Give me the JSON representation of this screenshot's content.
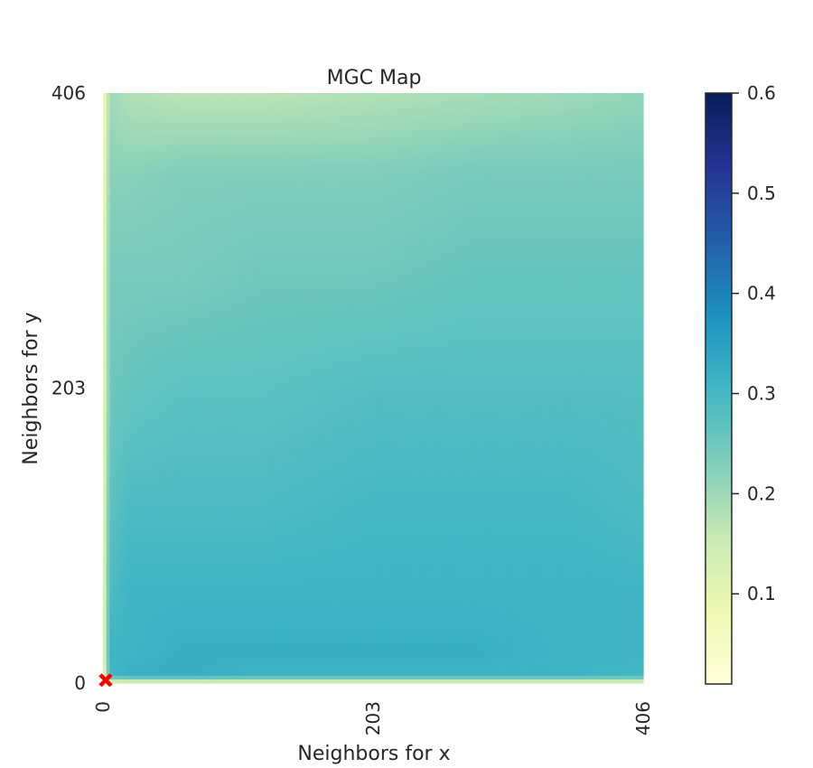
{
  "chart_data": {
    "type": "heatmap",
    "title": "MGC Map",
    "xlabel": "Neighbors for x",
    "ylabel": "Neighbors for y",
    "x_ticks": [
      "0",
      "203",
      "406"
    ],
    "y_ticks": [
      "0",
      "203",
      "406"
    ],
    "xlim": [
      0,
      406
    ],
    "ylim": [
      0,
      406
    ],
    "colorbar": {
      "range": [
        0.01,
        0.6
      ],
      "ticks": [
        "0.1",
        "0.2",
        "0.3",
        "0.4",
        "0.5",
        "0.6"
      ],
      "tick_values": [
        0.1,
        0.2,
        0.3,
        0.4,
        0.5,
        0.6
      ],
      "colormap": "YlGnBu"
    },
    "grid": false,
    "optimal_marker": {
      "x": 2,
      "y": 2,
      "color": "#ff0000"
    },
    "grid_values": {
      "x": [
        0,
        5,
        20,
        60,
        120,
        203,
        280,
        350,
        406
      ],
      "y": [
        0,
        5,
        20,
        60,
        120,
        203,
        280,
        350,
        406
      ],
      "z": [
        [
          0.02,
          0.08,
          0.1,
          0.1,
          0.1,
          0.1,
          0.1,
          0.1,
          0.1
        ],
        [
          0.05,
          0.3,
          0.32,
          0.32,
          0.31,
          0.31,
          0.31,
          0.31,
          0.3
        ],
        [
          0.08,
          0.31,
          0.31,
          0.32,
          0.32,
          0.32,
          0.32,
          0.31,
          0.31
        ],
        [
          0.08,
          0.29,
          0.31,
          0.31,
          0.31,
          0.31,
          0.31,
          0.31,
          0.31
        ],
        [
          0.08,
          0.27,
          0.29,
          0.29,
          0.29,
          0.3,
          0.3,
          0.3,
          0.29
        ],
        [
          0.07,
          0.25,
          0.26,
          0.27,
          0.27,
          0.28,
          0.28,
          0.28,
          0.28
        ],
        [
          0.07,
          0.24,
          0.24,
          0.24,
          0.25,
          0.25,
          0.26,
          0.26,
          0.26
        ],
        [
          0.06,
          0.22,
          0.22,
          0.23,
          0.23,
          0.23,
          0.24,
          0.24,
          0.24
        ],
        [
          0.05,
          0.2,
          0.18,
          0.17,
          0.17,
          0.18,
          0.19,
          0.2,
          0.21
        ]
      ]
    }
  }
}
